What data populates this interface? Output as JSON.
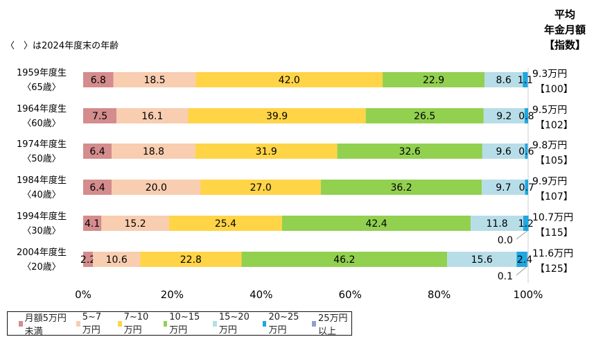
{
  "chart_data": {
    "type": "bar",
    "orientation": "horizontal",
    "stacked": "percent",
    "note_label": "〈　〉は2024年度末の年齢",
    "right_header": [
      "平均",
      "年金月額",
      "【指数】"
    ],
    "categories": [
      {
        "line1": "1959年度生",
        "line2": "〈65歳〉",
        "avg": "9.3万円",
        "index": "【100】"
      },
      {
        "line1": "1964年度生",
        "line2": "〈60歳〉",
        "avg": "9.5万円",
        "index": "【102】"
      },
      {
        "line1": "1974年度生",
        "line2": "〈50歳〉",
        "avg": "9.8万円",
        "index": "【105】"
      },
      {
        "line1": "1984年度生",
        "line2": "〈40歳〉",
        "avg": "9.9万円",
        "index": "【107】"
      },
      {
        "line1": "1994年度生",
        "line2": "〈30歳〉",
        "avg": "10.7万円",
        "index": "【115】"
      },
      {
        "line1": "2004年度生",
        "line2": "〈20歳〉",
        "avg": "11.6万円",
        "index": "【125】"
      }
    ],
    "series": [
      {
        "name": "月額5万円未満",
        "color": "#d48c8c",
        "values": [
          6.8,
          7.5,
          6.4,
          6.4,
          4.1,
          2.2
        ]
      },
      {
        "name": "5~7万円",
        "color": "#f8cdb0",
        "values": [
          18.5,
          16.1,
          18.8,
          20.0,
          15.2,
          10.6
        ]
      },
      {
        "name": "7~10万円",
        "color": "#ffd447",
        "values": [
          42.0,
          39.9,
          31.9,
          27.0,
          25.4,
          22.8
        ]
      },
      {
        "name": "10~15万円",
        "color": "#92d050",
        "values": [
          22.9,
          26.5,
          32.6,
          36.2,
          42.4,
          46.2
        ]
      },
      {
        "name": "15~20万円",
        "color": "#b7dde8",
        "values": [
          8.6,
          9.2,
          9.6,
          9.7,
          11.8,
          15.6
        ]
      },
      {
        "name": "20~25万円",
        "color": "#1ea7e1",
        "values": [
          1.1,
          0.8,
          0.6,
          0.7,
          1.2,
          2.4
        ]
      },
      {
        "name": "25万円以上",
        "color": "#8fa0c9",
        "values": [
          null,
          null,
          null,
          null,
          0.0,
          0.1
        ]
      }
    ],
    "xticks": [
      "0%",
      "20%",
      "40%",
      "60%",
      "80%",
      "100%"
    ],
    "xlim": [
      0,
      100
    ],
    "legend_position": "bottom"
  }
}
